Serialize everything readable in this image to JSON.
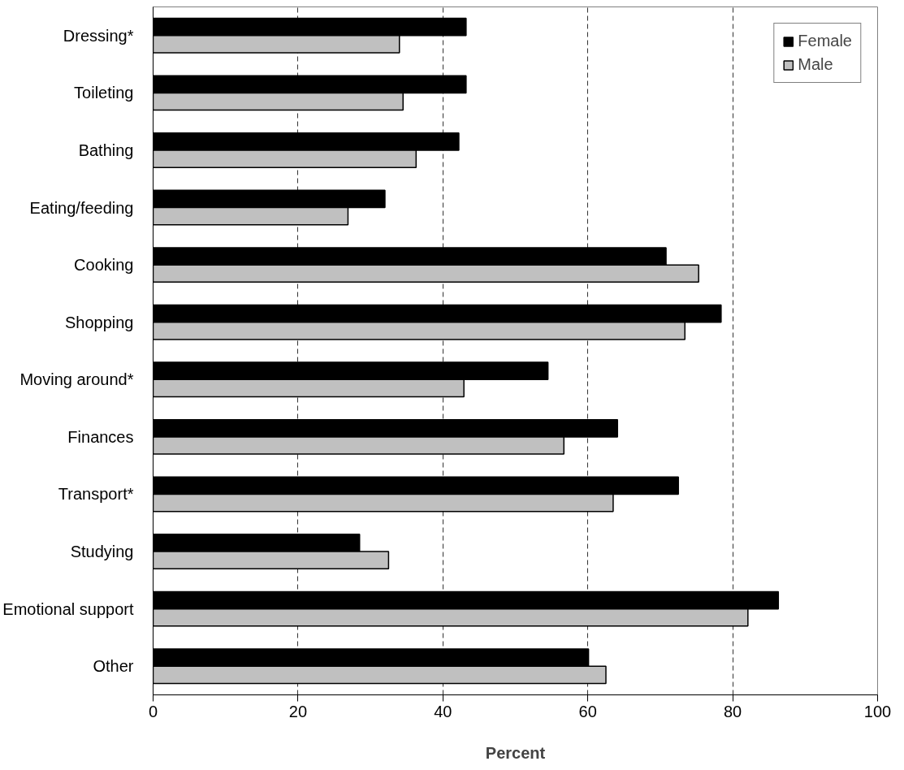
{
  "chart_data": {
    "type": "bar",
    "orientation": "horizontal",
    "xlabel": "Percent",
    "categories": [
      "Dressing*",
      "Toileting",
      "Bathing",
      "Eating/feeding",
      "Cooking",
      "Shopping",
      "Moving around*",
      "Finances",
      "Transport*",
      "Studying",
      "Emotional support",
      "Other"
    ],
    "series": [
      {
        "name": "Female",
        "color": "#000000",
        "values": [
          43.2,
          43.2,
          42.2,
          32.0,
          70.8,
          78.4,
          54.5,
          64.1,
          72.5,
          28.5,
          86.3,
          60.1
        ]
      },
      {
        "name": "Male",
        "color": "#c0c0c0",
        "values": [
          34.0,
          34.5,
          36.3,
          26.9,
          75.3,
          73.4,
          42.9,
          56.7,
          63.5,
          32.5,
          82.1,
          62.5
        ]
      }
    ],
    "xlim": [
      0,
      100
    ],
    "xticks": [
      0,
      20,
      40,
      60,
      80,
      100
    ],
    "grid": "x",
    "legend": "top right"
  }
}
